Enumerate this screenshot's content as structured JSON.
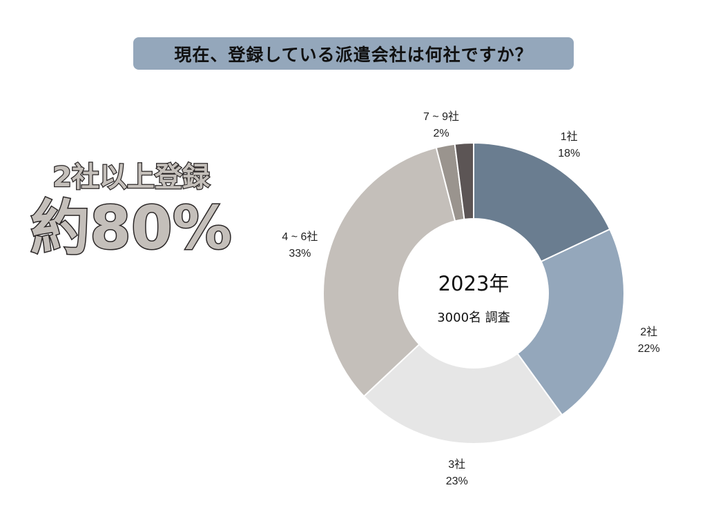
{
  "title": "現在、登録している派遣会社は何社ですか？",
  "headline": {
    "sub": "2社以上登録",
    "main": "約80%"
  },
  "chart_data": {
    "type": "pie",
    "donut": true,
    "center_title": "2023年",
    "center_subtitle": "3000名 調査",
    "slices": [
      {
        "label": "1社",
        "value": 18,
        "value_label": "18%",
        "color": "#6a7d90"
      },
      {
        "label": "2社",
        "value": 22,
        "value_label": "22%",
        "color": "#94a7bb"
      },
      {
        "label": "3社",
        "value": 23,
        "value_label": "23%",
        "color": "#e6e6e6"
      },
      {
        "label": "4 ~ 6社",
        "value": 33,
        "value_label": "33%",
        "color": "#c4bfba"
      },
      {
        "label": "7 ~ 9社",
        "value": 2,
        "value_label": "2%",
        "color": "#9a948e"
      },
      {
        "label": "",
        "value": 2,
        "value_label": "",
        "color": "#5c5555"
      }
    ]
  }
}
